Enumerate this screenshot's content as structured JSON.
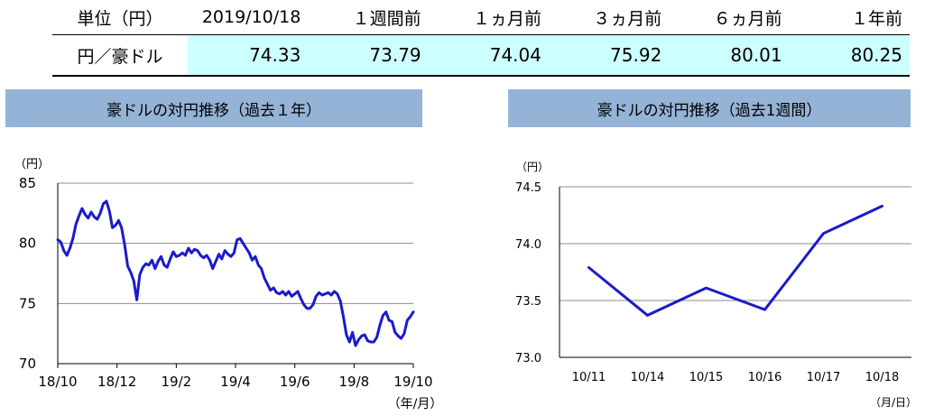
{
  "table": {
    "headers": [
      "単位（円）",
      "2019/10/18",
      "１週間前",
      "１ヵ月前",
      "３ヵ月前",
      "６ヵ月前",
      "１年前"
    ],
    "row_label": "円／豪ドル",
    "values": [
      "74.33",
      "73.79",
      "74.04",
      "75.92",
      "80.01",
      "80.25"
    ]
  },
  "colors": {
    "line": "#1a1acc",
    "highlight_cell": "#ccffff",
    "title_bar": "#95b3d7",
    "grid": "#8c8c8c"
  },
  "chart_data": [
    {
      "type": "line",
      "title": "豪ドルの対円推移（過去１年）",
      "unit_label": "（円）",
      "x_axis_unit": "（年/月）",
      "ylim": [
        70,
        85
      ],
      "yticks": [
        "70",
        "75",
        "80",
        "85"
      ],
      "xticks": [
        "18/10",
        "18/12",
        "19/2",
        "19/4",
        "19/6",
        "19/8",
        "19/10"
      ],
      "series": [
        {
          "values": [
            80.3,
            80.1,
            79.4,
            79.0,
            79.6,
            80.4,
            81.6,
            82.3,
            82.9,
            82.4,
            82.1,
            82.6,
            82.2,
            82.0,
            82.5,
            83.3,
            83.5,
            82.7,
            81.3,
            81.5,
            81.9,
            81.3,
            79.9,
            78.1,
            77.6,
            76.9,
            75.3,
            77.4,
            78.0,
            78.3,
            78.2,
            78.6,
            77.9,
            78.5,
            78.9,
            78.2,
            78.0,
            78.7,
            79.3,
            78.9,
            79.0,
            79.2,
            79.0,
            79.6,
            79.2,
            79.5,
            79.4,
            79.0,
            78.8,
            79.0,
            78.6,
            77.9,
            78.5,
            79.1,
            78.7,
            79.4,
            79.1,
            78.9,
            79.2,
            80.3,
            80.4,
            80.0,
            79.6,
            79.2,
            78.6,
            78.9,
            78.2,
            77.9,
            77.1,
            76.6,
            76.1,
            76.3,
            75.9,
            75.8,
            76.0,
            75.7,
            76.0,
            75.6,
            75.8,
            76.0,
            75.4,
            74.9,
            74.6,
            74.6,
            74.9,
            75.6,
            75.9,
            75.7,
            75.8,
            75.9,
            75.7,
            76.0,
            75.8,
            75.2,
            73.9,
            72.4,
            71.8,
            72.6,
            71.5,
            72.0,
            72.3,
            72.4,
            71.9,
            71.8,
            71.8,
            72.2,
            73.2,
            74.0,
            74.3,
            73.6,
            73.5,
            72.6,
            72.3,
            72.1,
            72.5,
            73.6,
            73.9,
            74.3
          ]
        }
      ]
    },
    {
      "type": "line",
      "title": "豪ドルの対円推移（過去1週間）",
      "unit_label": "（円）",
      "x_axis_unit": "（月/日）",
      "ylim": [
        73.0,
        74.5
      ],
      "yticks": [
        "73.0",
        "73.5",
        "74.0",
        "74.5"
      ],
      "categories": [
        "10/11",
        "10/14",
        "10/15",
        "10/16",
        "10/17",
        "10/18"
      ],
      "series": [
        {
          "values": [
            73.79,
            73.37,
            73.61,
            73.42,
            74.09,
            74.33
          ]
        }
      ]
    }
  ]
}
